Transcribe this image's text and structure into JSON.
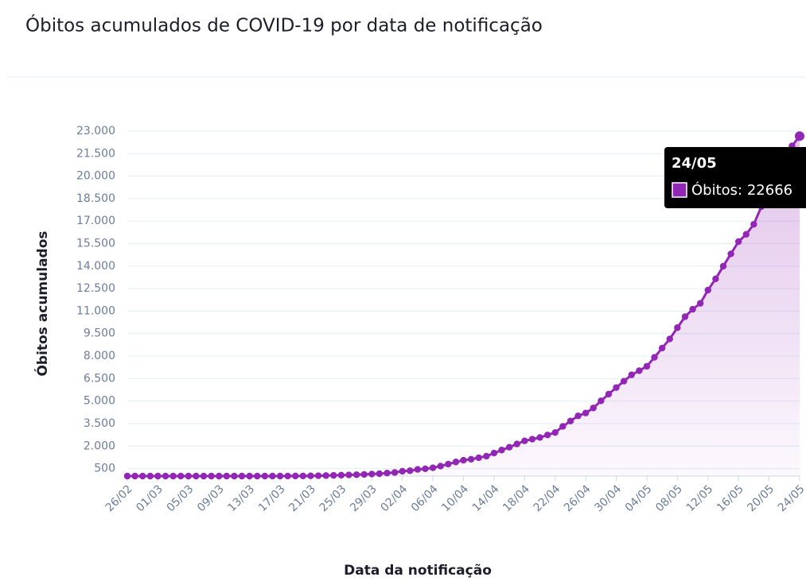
{
  "chart_data": {
    "type": "line",
    "title": "Óbitos acumulados de COVID-19 por data de notificação",
    "x_label": "Data da notificação",
    "y_label": "Óbitos acumulados",
    "categories": [
      "26/02",
      null,
      null,
      null,
      "01/03",
      null,
      null,
      null,
      "05/03",
      null,
      null,
      null,
      "09/03",
      null,
      null,
      null,
      "13/03",
      null,
      null,
      null,
      "17/03",
      null,
      null,
      null,
      "21/03",
      null,
      null,
      null,
      "25/03",
      null,
      null,
      null,
      "29/03",
      null,
      null,
      null,
      "02/04",
      null,
      null,
      null,
      "06/04",
      null,
      null,
      null,
      "10/04",
      null,
      null,
      null,
      "14/04",
      null,
      null,
      null,
      "18/04",
      null,
      null,
      null,
      "22/04",
      null,
      null,
      null,
      "26/04",
      null,
      null,
      null,
      "30/04",
      null,
      null,
      null,
      "04/05",
      null,
      null,
      null,
      "08/05",
      null,
      null,
      null,
      "12/05",
      null,
      null,
      null,
      "16/05",
      null,
      null,
      null,
      "20/05",
      null,
      null,
      null,
      "24/05"
    ],
    "series": [
      {
        "name": "Óbitos",
        "color": "#9327b5",
        "values": [
          0,
          0,
          0,
          0,
          0,
          0,
          0,
          0,
          0,
          0,
          0,
          0,
          0,
          0,
          0,
          0,
          0,
          0,
          0,
          0,
          1,
          4,
          6,
          11,
          15,
          25,
          34,
          46,
          59,
          77,
          92,
          111,
          136,
          159,
          201,
          240,
          324,
          359,
          445,
          486,
          553,
          667,
          800,
          941,
          1056,
          1124,
          1223,
          1328,
          1532,
          1736,
          1924,
          2141,
          2347,
          2462,
          2575,
          2741,
          2906,
          3313,
          3670,
          4016,
          4205,
          4543,
          5017,
          5466,
          5901,
          6329,
          6750,
          7025,
          7321,
          7921,
          8536,
          9146,
          9897,
          10627,
          11123,
          11519,
          12400,
          13149,
          13993,
          14817,
          15633,
          16118,
          16792,
          17971,
          18859,
          20047,
          21048,
          22013,
          22666
        ]
      }
    ],
    "ylim": [
      0,
      23000
    ],
    "yticks": [
      500,
      {
        "value": 2000,
        "label": "2.000"
      },
      {
        "value": 3500,
        "label": "3.500"
      },
      {
        "value": 5000,
        "label": "5.000"
      },
      {
        "value": 6500,
        "label": "6.500"
      },
      {
        "value": 8000,
        "label": "8.000"
      },
      {
        "value": 9500,
        "label": "9.500"
      },
      {
        "value": 11000,
        "label": "11.000"
      },
      {
        "value": 12500,
        "label": "12.500"
      },
      {
        "value": 14000,
        "label": "14.000"
      },
      {
        "value": 15500,
        "label": "15.500"
      },
      {
        "value": 17000,
        "label": "17.000"
      },
      {
        "value": 18500,
        "label": "18.500"
      },
      {
        "value": 20000,
        "label": "20.000"
      },
      {
        "value": 21500,
        "label": "21.500"
      },
      {
        "value": 23000,
        "label": "23.000"
      }
    ],
    "grid": true,
    "tooltip_index": 88
  }
}
